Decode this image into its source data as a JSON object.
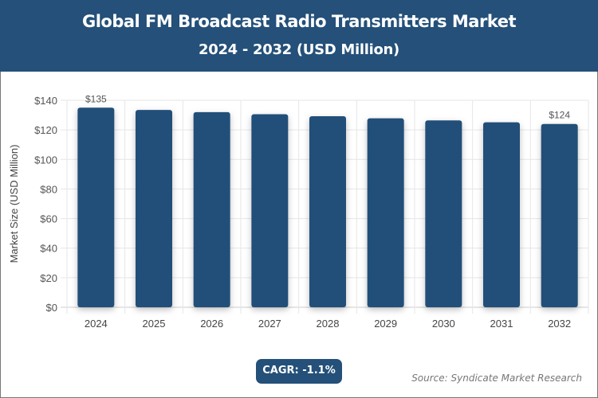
{
  "chart_data": {
    "type": "bar",
    "title": "Global FM Broadcast Radio Transmitters Market",
    "subtitle": "2024 - 2032 (USD Million)",
    "ylabel": "Market Size (USD Million)",
    "xlabel": "",
    "categories": [
      "2024",
      "2025",
      "2026",
      "2027",
      "2028",
      "2029",
      "2030",
      "2031",
      "2032"
    ],
    "values": [
      135,
      133.5,
      132,
      130.6,
      129.2,
      127.8,
      126.4,
      125.1,
      124
    ],
    "data_labels": {
      "0": "$135",
      "8": "$124"
    },
    "ylim": [
      0,
      140
    ],
    "yticks": [
      "$0",
      "$20",
      "$40",
      "$60",
      "$80",
      "$100",
      "$120",
      "$140"
    ],
    "grid": true,
    "bar_color": "#245079"
  },
  "cagr": "CAGR: -1.1%",
  "source": "Source: Syndicate Market Research"
}
